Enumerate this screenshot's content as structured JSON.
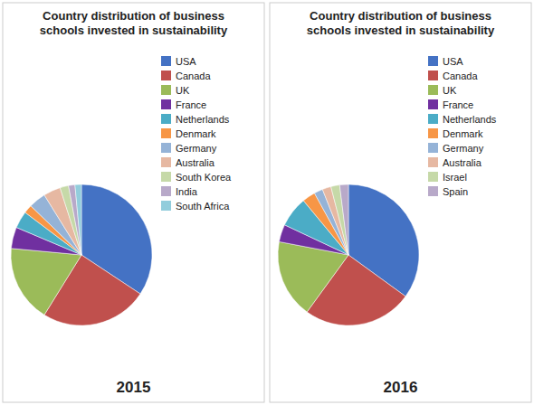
{
  "chart_data": [
    {
      "type": "pie",
      "title": "Country distribution of business\nschools invested in sustainability",
      "xlabel": "2015",
      "categories": [
        "USA",
        "Canada",
        "UK",
        "France",
        "Netherlands",
        "Denmark",
        "Germany",
        "Australia",
        "South Korea",
        "India",
        "South Africa"
      ],
      "values": [
        35,
        25,
        18,
        5,
        4,
        2,
        4,
        4,
        2,
        1.5,
        1.5
      ],
      "colors": [
        "#4472C4",
        "#C0504D",
        "#9BBB59",
        "#7030A0",
        "#4BACC6",
        "#F79646",
        "#95B3D7",
        "#E6B8A2",
        "#C6D9A8",
        "#B8A9C9",
        "#92CDDC"
      ],
      "legend": "upper right"
    },
    {
      "type": "pie",
      "title": "Country distribution of business\nschools invested in sustainability",
      "xlabel": "2016",
      "categories": [
        "USA",
        "Canada",
        "UK",
        "France",
        "Netherlands",
        "Denmark",
        "Germany",
        "Australia",
        "Israel",
        "Spain"
      ],
      "values": [
        35,
        25,
        18,
        4,
        7,
        3,
        2,
        2,
        2,
        2
      ],
      "colors": [
        "#4472C4",
        "#C0504D",
        "#9BBB59",
        "#7030A0",
        "#4BACC6",
        "#F79646",
        "#95B3D7",
        "#E6B8A2",
        "#C6D9A8",
        "#B8A9C9"
      ],
      "legend": "upper right"
    }
  ]
}
